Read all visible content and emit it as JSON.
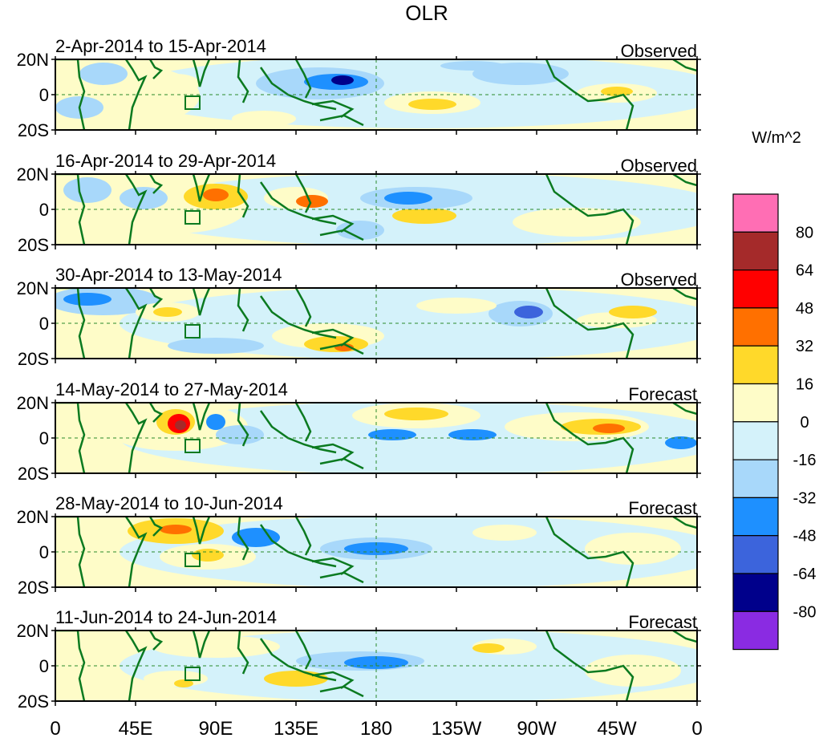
{
  "title": "OLR",
  "panels": [
    {
      "period": "2-Apr-2014 to 15-Apr-2014",
      "kind": "Observed"
    },
    {
      "period": "16-Apr-2014 to 29-Apr-2014",
      "kind": "Observed"
    },
    {
      "period": "30-Apr-2014 to 13-May-2014",
      "kind": "Observed"
    },
    {
      "period": "14-May-2014 to 27-May-2014",
      "kind": "Forecast"
    },
    {
      "period": "28-May-2014 to 10-Jun-2014",
      "kind": "Forecast"
    },
    {
      "period": "11-Jun-2014 to 24-Jun-2014",
      "kind": "Forecast"
    }
  ],
  "lat_labels": [
    "20N",
    "0",
    "20S"
  ],
  "lon_labels": [
    "0",
    "45E",
    "90E",
    "135E",
    "180",
    "135W",
    "90W",
    "45W",
    "0"
  ],
  "colorbar": {
    "unit": "W/m^2",
    "levels": [
      "80",
      "64",
      "48",
      "32",
      "16",
      "0",
      "-16",
      "-32",
      "-48",
      "-64",
      "-80"
    ],
    "colors": [
      "#ff6eb4",
      "#a52a2a",
      "#ff0000",
      "#ff7000",
      "#ffd92a",
      "#fefcc8",
      "#d4f2fa",
      "#a8d8fa",
      "#1e90ff",
      "#3c64dc",
      "#00008b",
      "#8a2be2"
    ]
  },
  "colors": {
    "land": "#0b7a20",
    "axis": "#000000",
    "equator": "#2a8a2a"
  }
}
